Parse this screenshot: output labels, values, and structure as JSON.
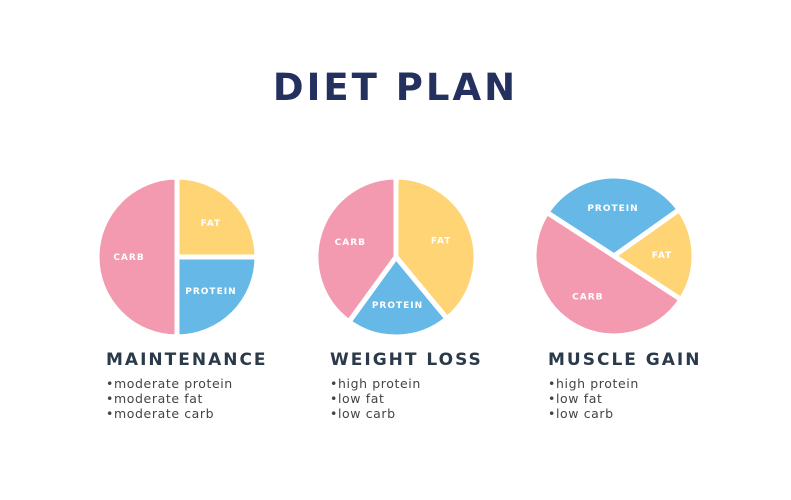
{
  "title": "DIET PLAN",
  "colors": {
    "carb": "#F49AB0",
    "fat": "#FFD475",
    "protein": "#66B8E6",
    "title": "#24305E"
  },
  "chart_data": [
    {
      "type": "pie",
      "title": "MAINTENANCE",
      "slices": [
        {
          "label": "FAT",
          "value": 25,
          "key": "fat"
        },
        {
          "label": "PROTEIN",
          "value": 25,
          "key": "protein"
        },
        {
          "label": "CARB",
          "value": 50,
          "key": "carb"
        }
      ],
      "notes": [
        "moderate protein",
        "moderate fat",
        "moderate carb"
      ]
    },
    {
      "type": "pie",
      "title": "WEIGHT LOSS",
      "slices": [
        {
          "label": "FAT",
          "value": 39,
          "key": "fat"
        },
        {
          "label": "PROTEIN",
          "value": 21,
          "key": "protein"
        },
        {
          "label": "CARB",
          "value": 40,
          "key": "carb"
        }
      ],
      "notes": [
        "high protein",
        "low fat",
        "low carb"
      ]
    },
    {
      "type": "pie",
      "title": "MUSCLE GAIN",
      "slices": [
        {
          "label": "PROTEIN",
          "value": 31,
          "key": "protein"
        },
        {
          "label": "FAT",
          "value": 19,
          "key": "fat"
        },
        {
          "label": "CARB",
          "value": 50,
          "key": "carb"
        }
      ],
      "notes": [
        "high protein",
        "low fat",
        "low carb"
      ]
    }
  ]
}
